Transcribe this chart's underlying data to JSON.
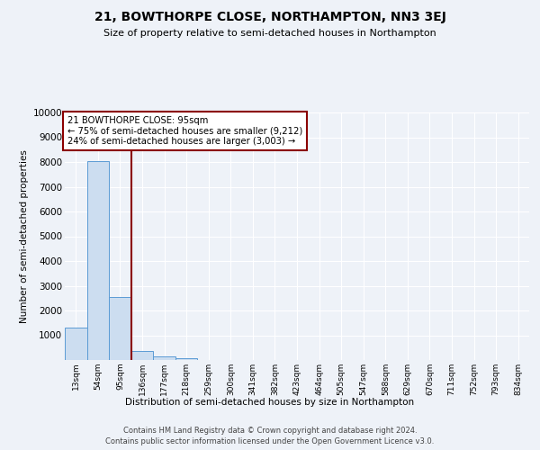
{
  "title": "21, BOWTHORPE CLOSE, NORTHAMPTON, NN3 3EJ",
  "subtitle": "Size of property relative to semi-detached houses in Northampton",
  "xlabel": "Distribution of semi-detached houses by size in Northampton",
  "ylabel": "Number of semi-detached properties",
  "footer_line1": "Contains HM Land Registry data © Crown copyright and database right 2024.",
  "footer_line2": "Contains public sector information licensed under the Open Government Licence v3.0.",
  "categories": [
    "13sqm",
    "54sqm",
    "95sqm",
    "136sqm",
    "177sqm",
    "218sqm",
    "259sqm",
    "300sqm",
    "341sqm",
    "382sqm",
    "423sqm",
    "464sqm",
    "505sqm",
    "547sqm",
    "588sqm",
    "629sqm",
    "670sqm",
    "711sqm",
    "752sqm",
    "793sqm",
    "834sqm"
  ],
  "values": [
    1310,
    8050,
    2550,
    380,
    130,
    90,
    0,
    0,
    0,
    0,
    0,
    0,
    0,
    0,
    0,
    0,
    0,
    0,
    0,
    0,
    0
  ],
  "bar_color": "#ccddf0",
  "bar_edge_color": "#5b9bd5",
  "highlight_bar_index": 2,
  "highlight_line_color": "#8B0000",
  "annotation_text": "21 BOWTHORPE CLOSE: 95sqm\n← 75% of semi-detached houses are smaller (9,212)\n24% of semi-detached houses are larger (3,003) →",
  "annotation_box_color": "#8B0000",
  "ylim": [
    0,
    10000
  ],
  "yticks": [
    0,
    1000,
    2000,
    3000,
    4000,
    5000,
    6000,
    7000,
    8000,
    9000,
    10000
  ],
  "background_color": "#eef2f8",
  "plot_bg_color": "#eef2f8",
  "grid_color": "#ffffff"
}
